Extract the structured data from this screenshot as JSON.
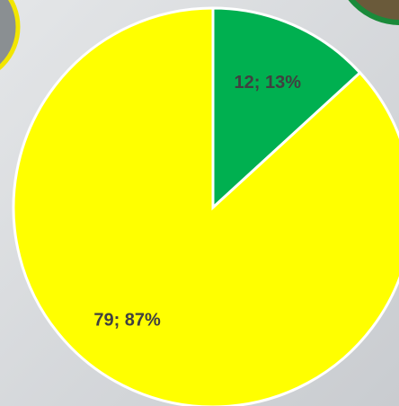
{
  "chart_data": {
    "type": "pie",
    "categories": [
      null,
      null
    ],
    "values": [
      12,
      79
    ],
    "value_labels": [
      "12; 13%",
      "79; 87%"
    ],
    "colors": [
      "#00b050",
      "#ffff00"
    ]
  }
}
